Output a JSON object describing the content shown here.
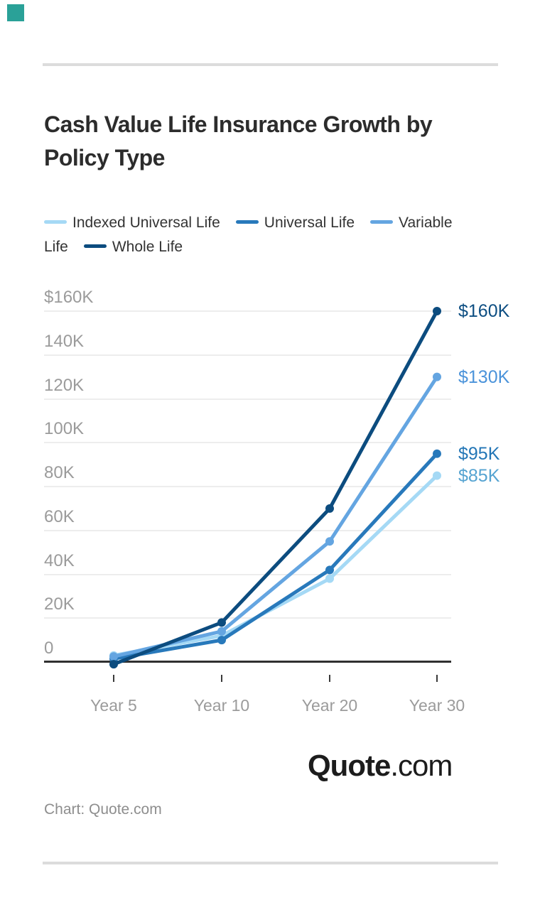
{
  "page": {
    "background_color": "#ffffff",
    "accent_square_color": "#2aa198",
    "divider_color": "#dcdcdc"
  },
  "chart_data": {
    "type": "line",
    "title": "Cash Value Life Insurance Growth by Policy Type",
    "units": "USD thousands (K)",
    "categories": [
      "Year 5",
      "Year 10",
      "Year 20",
      "Year 30"
    ],
    "series": [
      {
        "name": "Indexed Universal Life",
        "color": "#a5d9f5",
        "label_color": "#55a3d1",
        "values_k": [
          3,
          12,
          38,
          85
        ],
        "end_label": "$85K"
      },
      {
        "name": "Universal Life",
        "color": "#2879bb",
        "label_color": "#2376b6",
        "values_k": [
          1.5,
          10,
          42,
          95
        ],
        "end_label": "$95K"
      },
      {
        "name": "Variable Life",
        "color": "#64a5e1",
        "label_color": "#4b93da",
        "values_k": [
          2.5,
          14,
          55,
          130
        ],
        "end_label": "$130K"
      },
      {
        "name": "Whole Life",
        "color": "#0c4c7f",
        "label_color": "#0d4e82",
        "values_k": [
          -1,
          18,
          70,
          160
        ],
        "end_label": "$160K"
      }
    ],
    "y_axis": {
      "tick_labels": [
        "$160K",
        "140K",
        "120K",
        "100K",
        "80K",
        "60K",
        "40K",
        "20K",
        "0"
      ],
      "tick_values_k": [
        160,
        140,
        120,
        100,
        80,
        60,
        40,
        20,
        0
      ],
      "min_k": 0,
      "max_k": 160,
      "grid": true
    },
    "x_axis": {
      "labels": [
        "Year 5",
        "Year 10",
        "Year 20",
        "Year 30"
      ]
    },
    "legend_position": "top"
  },
  "branding": {
    "logo_bold": "Quote",
    "logo_light": ".com",
    "attribution": "Chart: Quote.com"
  }
}
